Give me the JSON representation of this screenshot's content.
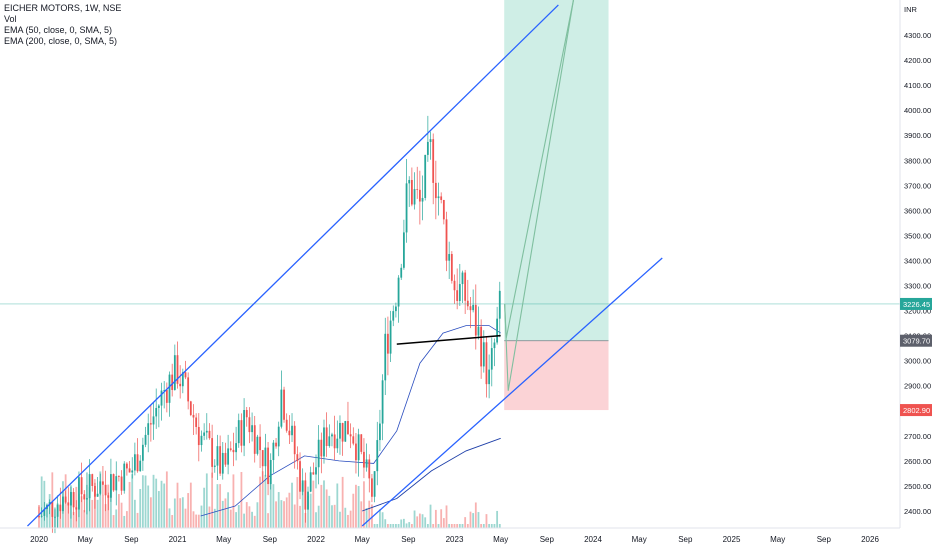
{
  "legend": {
    "symbol": "EICHER MOTORS, 1W, NSE",
    "vol": "Vol",
    "ema50": "EMA (50, close, 0, SMA, 5)",
    "ema200": "EMA (200, close, 0, SMA, 5)"
  },
  "colors": {
    "up": "#26a69a",
    "down": "#ef5350",
    "channel": "#2962ff",
    "ema50": "#2a4dbf",
    "ema200": "#1e3fa8",
    "neckline": "#000000",
    "target_zone": "#cfeee6",
    "stop_zone": "#fbd3d6",
    "arrow": "#7fbf9f",
    "price_label": "#26a69a",
    "entry_label": "#5d606b",
    "stop_label": "#ef5350"
  },
  "chart_data": {
    "type": "candlestick",
    "currency": "INR",
    "ylim": [
      2340,
      4420
    ],
    "y_ticks": [
      2400,
      2500,
      2600,
      2700,
      2800,
      2900,
      3000,
      3100,
      3200,
      3300,
      3400,
      3500,
      3600,
      3700,
      3800,
      3900,
      4000,
      4100,
      4200,
      4300
    ],
    "x_ticks": [
      "2020",
      "May",
      "Sep",
      "2021",
      "May",
      "Sep",
      "2022",
      "May",
      "Sep",
      "2023",
      "May",
      "Sep",
      "2024",
      "May",
      "Sep",
      "2025",
      "May",
      "Sep",
      "2026"
    ],
    "price_labels": {
      "current": "3226.45",
      "entry": "3079.70",
      "stop": "2802.90"
    },
    "ohlc_anchors": [
      {
        "period": "2020",
        "price": 2380
      },
      {
        "period": "2020-03",
        "price": 2450
      },
      {
        "period": "2020-05",
        "price": 2480
      },
      {
        "period": "2020-09",
        "price": 2560
      },
      {
        "period": "2020-12",
        "price": 2900
      },
      {
        "period": "2021-01",
        "price": 2960
      },
      {
        "period": "2021-03",
        "price": 2700
      },
      {
        "period": "2021-05",
        "price": 2560
      },
      {
        "period": "2021-07",
        "price": 2780
      },
      {
        "period": "2021-09",
        "price": 2560
      },
      {
        "period": "2021-10",
        "price": 2880
      },
      {
        "period": "2021-12",
        "price": 2450
      },
      {
        "period": "2022-02",
        "price": 2720
      },
      {
        "period": "2022-04",
        "price": 2740
      },
      {
        "period": "2022-06",
        "price": 2450
      },
      {
        "period": "2022-07",
        "price": 3050
      },
      {
        "period": "2022-08",
        "price": 3300
      },
      {
        "period": "2022-09",
        "price": 3700
      },
      {
        "period": "2022-10",
        "price": 3620
      },
      {
        "period": "2022-11",
        "price": 3840
      },
      {
        "period": "2022-12",
        "price": 3550
      },
      {
        "period": "2023-01",
        "price": 3300
      },
      {
        "period": "2023-02",
        "price": 3250
      },
      {
        "period": "2023-03",
        "price": 3120
      },
      {
        "period": "2023-04",
        "price": 2920
      },
      {
        "period": "2023-05",
        "price": 3226
      }
    ],
    "ema50": [
      {
        "period": "2021-03",
        "price": 2380
      },
      {
        "period": "2021-06",
        "price": 2420
      },
      {
        "period": "2021-09",
        "price": 2540
      },
      {
        "period": "2021-12",
        "price": 2620
      },
      {
        "period": "2022-03",
        "price": 2600
      },
      {
        "period": "2022-06",
        "price": 2590
      },
      {
        "period": "2022-08",
        "price": 2720
      },
      {
        "period": "2022-10",
        "price": 2990
      },
      {
        "period": "2022-12",
        "price": 3110
      },
      {
        "period": "2023-02",
        "price": 3140
      },
      {
        "period": "2023-04",
        "price": 3140
      },
      {
        "period": "2023-05",
        "price": 3110
      }
    ],
    "ema200": [
      {
        "period": "2022-05",
        "price": 2400
      },
      {
        "period": "2022-08",
        "price": 2450
      },
      {
        "period": "2022-11",
        "price": 2560
      },
      {
        "period": "2023-02",
        "price": 2640
      },
      {
        "period": "2023-05",
        "price": 2690
      }
    ],
    "drawings": {
      "channel_upper": [
        {
          "period": "2019-12",
          "price": 2340
        },
        {
          "period": "2023-10",
          "price": 4420
        }
      ],
      "channel_lower": [
        {
          "period": "2022-05",
          "price": 2340
        },
        {
          "period": "2024-07",
          "price": 3410
        }
      ],
      "neckline": [
        {
          "period": "2022-08",
          "price": 3066
        },
        {
          "period": "2023-05",
          "price": 3100
        }
      ],
      "long_position": {
        "entry": 3079.7,
        "stop": 2802.9,
        "target": 4420,
        "from": "2023-06",
        "to": "2024-02"
      }
    }
  }
}
